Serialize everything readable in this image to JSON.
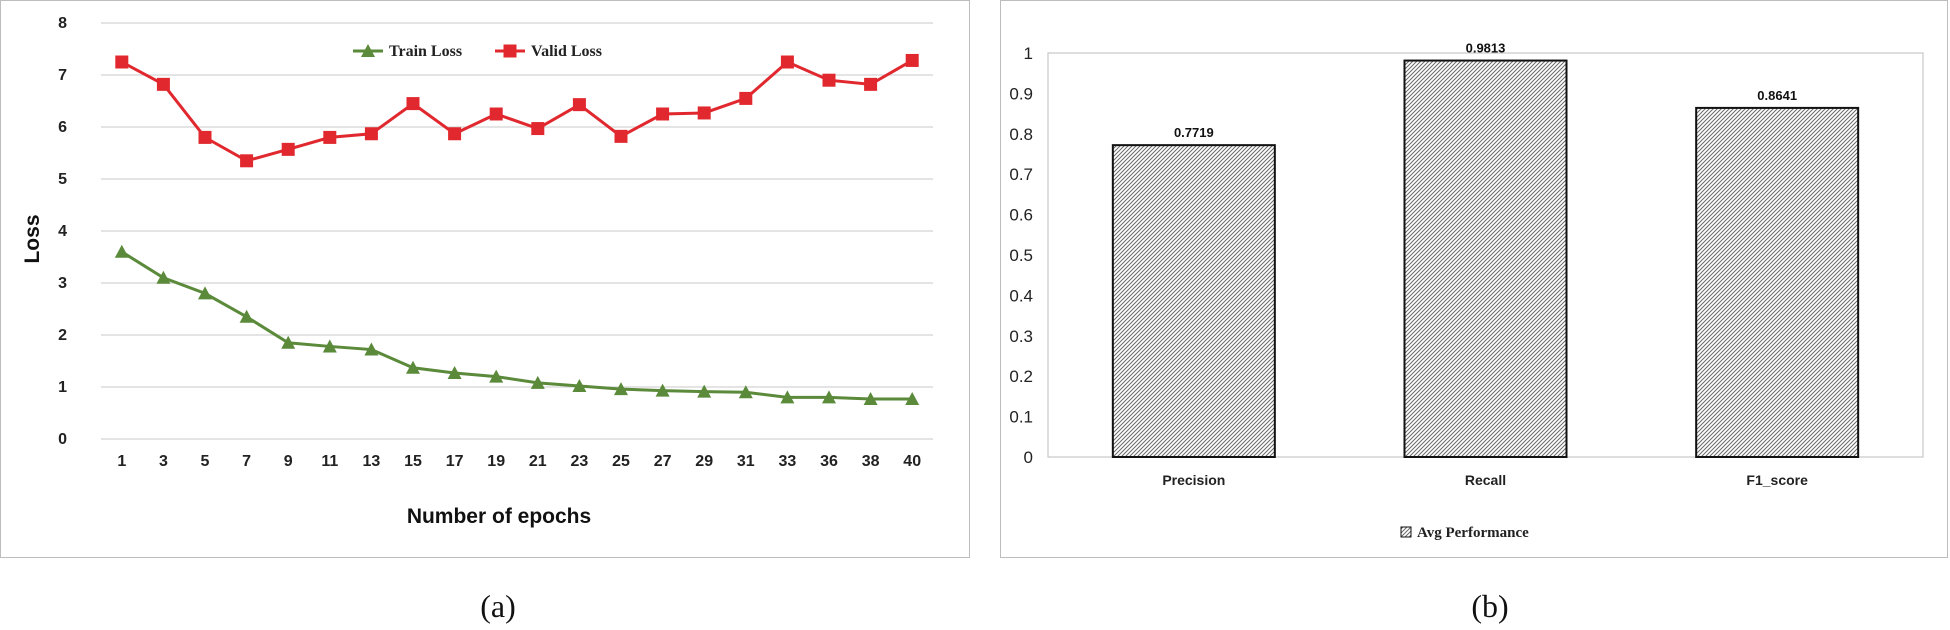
{
  "chart_data": [
    {
      "type": "line",
      "caption": "(a)",
      "xlabel": "Number of epochs",
      "ylabel": "Loss",
      "ylim": [
        0,
        8
      ],
      "yticks": [
        "0",
        "1",
        "2",
        "3",
        "4",
        "5",
        "6",
        "7",
        "8"
      ],
      "x": [
        "1",
        "3",
        "5",
        "7",
        "9",
        "11",
        "13",
        "15",
        "17",
        "19",
        "21",
        "23",
        "25",
        "27",
        "29",
        "31",
        "33",
        "36",
        "38",
        "40"
      ],
      "grid": true,
      "legend_position": "top-center",
      "series": [
        {
          "name": "Train Loss",
          "color": "#5a8a3a",
          "marker": "triangle",
          "values": [
            3.6,
            3.1,
            2.8,
            2.35,
            1.85,
            1.78,
            1.72,
            1.37,
            1.27,
            1.2,
            1.08,
            1.02,
            0.96,
            0.93,
            0.91,
            0.9,
            0.8,
            0.8,
            0.77,
            0.77
          ]
        },
        {
          "name": "Valid Loss",
          "color": "#e0282e",
          "marker": "square",
          "values": [
            7.25,
            6.82,
            5.8,
            5.35,
            5.57,
            5.8,
            5.87,
            6.45,
            5.87,
            6.25,
            5.97,
            6.43,
            5.82,
            6.25,
            6.27,
            6.55,
            7.25,
            6.9,
            6.82,
            7.28
          ]
        }
      ]
    },
    {
      "type": "bar",
      "caption": "(b)",
      "categories": [
        "Precision",
        "Recall",
        "F1_score"
      ],
      "ylim": [
        0,
        1
      ],
      "yticks": [
        "0",
        "0.1",
        "0.2",
        "0.3",
        "0.4",
        "0.5",
        "0.6",
        "0.7",
        "0.8",
        "0.9",
        "1"
      ],
      "legend_position": "bottom-center",
      "series": [
        {
          "name": "Avg Performance",
          "values": [
            0.7719,
            0.9813,
            0.8641
          ],
          "labels": [
            "0.7719",
            "0.9813",
            "0.8641"
          ]
        }
      ]
    }
  ]
}
